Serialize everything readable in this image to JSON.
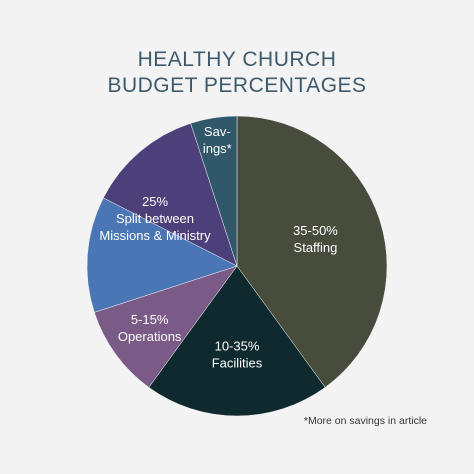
{
  "chart_data": {
    "type": "pie",
    "title": "HEALTHY CHURCH\nBUDGET PERCENTAGES",
    "categories": [
      "35-50%\nStaffing",
      "10-35%\nFacilities",
      "5-15%\nOperations",
      null,
      null,
      "Sav-\nings*"
    ],
    "values": [
      40,
      20,
      10,
      12.5,
      12.5,
      5
    ],
    "colors": [
      "#474c3c",
      "#0f2a2f",
      "#7a5a86",
      "#4b76b5",
      "#4c407a",
      "#30586a"
    ],
    "annotation": "25%\nSplit between\nMissions & Ministry",
    "footnote": "*More on savings in article"
  }
}
